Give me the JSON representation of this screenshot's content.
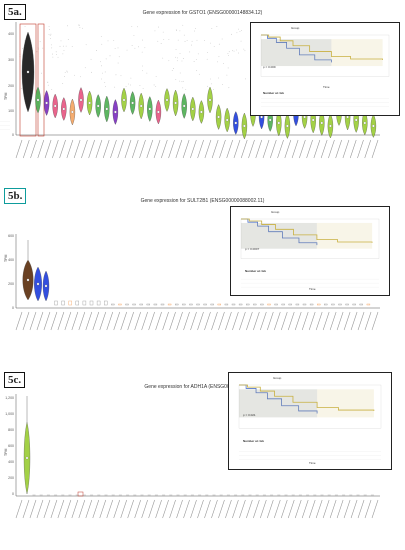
{
  "panels": [
    {
      "tag": "5a.",
      "title": "Gene expression for GSTO1 (ENSG00000148834.12)",
      "ylabel": "TPM",
      "yticks": [
        "400",
        "300",
        "200",
        "100",
        "0"
      ],
      "inset": {
        "group_label": "Group",
        "pvalue": "p = 0.009",
        "risk_title": "Number at risk",
        "time_label": "Time"
      }
    },
    {
      "tag": "5b.",
      "title": "Gene expression for SULT2B1 (ENSG00000088002.11)",
      "ylabel": "TPM",
      "yticks": [
        "600",
        "400",
        "200",
        "0"
      ],
      "inset": {
        "group_label": "Group",
        "pvalue": "p = 0.0007",
        "risk_title": "Number at risk",
        "time_label": "Time"
      }
    },
    {
      "tag": "5c.",
      "title": "Gene expression for ADH1A (ENSG00000187758.7)",
      "ylabel": "TPM",
      "yticks": [
        "1,200",
        "1,000",
        "800",
        "600",
        "400",
        "200",
        "0"
      ],
      "inset": {
        "group_label": "Group",
        "pvalue": "p = 0.021",
        "risk_title": "Number at risk",
        "time_label": "Time"
      }
    }
  ],
  "colors": {
    "violet": "#7b2cbf",
    "green": "#4caf50",
    "olive": "#9acd32",
    "pink": "#e75480",
    "orange": "#f4a460",
    "blue": "#1e3cdc",
    "brown": "#5a2d0c",
    "highlight_box": "#c0392b",
    "km_high": "#5577cc",
    "km_low": "#c8b040"
  }
}
